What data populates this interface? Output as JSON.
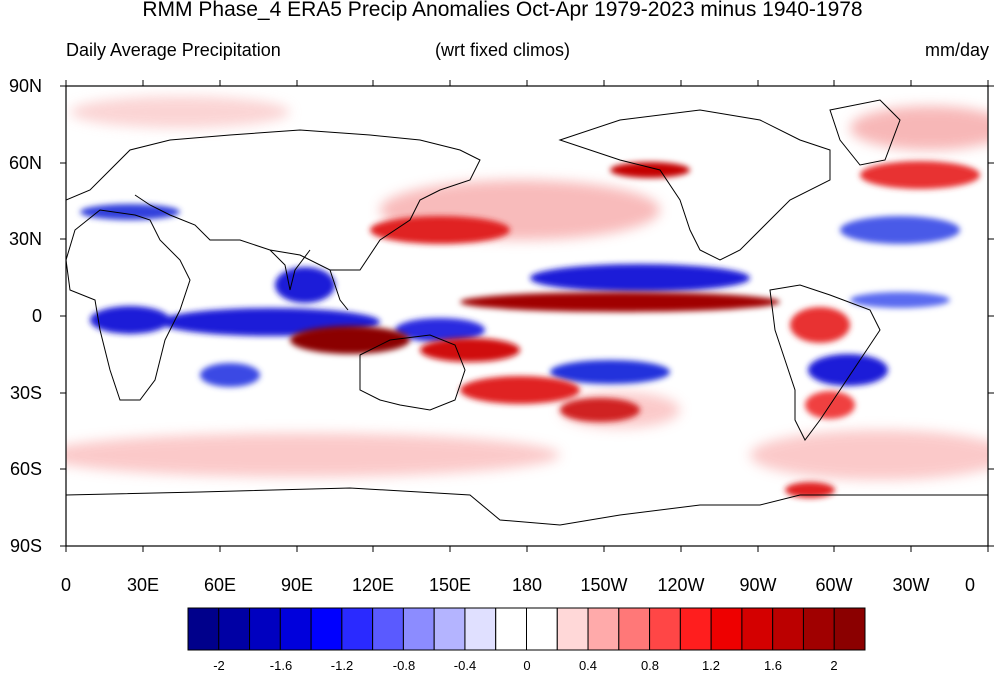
{
  "map": {
    "title": "RMM Phase_4 ERA5 Precip Anomalies Oct-Apr 1979-2023 minus 1940-1978",
    "left_label": "Daily Average Precipitation",
    "center_label": "(wrt fixed climos)",
    "units": "mm/day",
    "y_ticks": [
      "90N",
      "60N",
      "30N",
      "0",
      "30S",
      "60S",
      "90S"
    ],
    "x_ticks": [
      "0",
      "30E",
      "60E",
      "90E",
      "120E",
      "150E",
      "180",
      "150W",
      "120W",
      "90W",
      "60W",
      "30W",
      "0"
    ],
    "colors": {
      "blue_strong": "#1a1ad8",
      "blue_mid": "#5a6af0",
      "blue_light": "#c8ccf8",
      "red_strong": "#c40000",
      "red_dark": "#8b0000",
      "red_mid": "#f04040",
      "red_light": "#fbc4c4"
    }
  },
  "colorbar": {
    "labels": [
      "-2",
      "-1.6",
      "-1.2",
      "-0.8",
      "-0.4",
      "0",
      "0.4",
      "0.8",
      "1.2",
      "1.6",
      "2"
    ],
    "colors": [
      "#00008b",
      "#0000a4",
      "#0000c0",
      "#0000dc",
      "#0000ff",
      "#2a2aff",
      "#5a5aff",
      "#8c8cff",
      "#b4b4ff",
      "#e0e0ff",
      "#ffffff",
      "#ffffff",
      "#ffd8d8",
      "#ffaaaa",
      "#ff7878",
      "#ff4646",
      "#ff1e1e",
      "#ee0000",
      "#d40000",
      "#bb0000",
      "#a00000",
      "#8b0000"
    ]
  }
}
